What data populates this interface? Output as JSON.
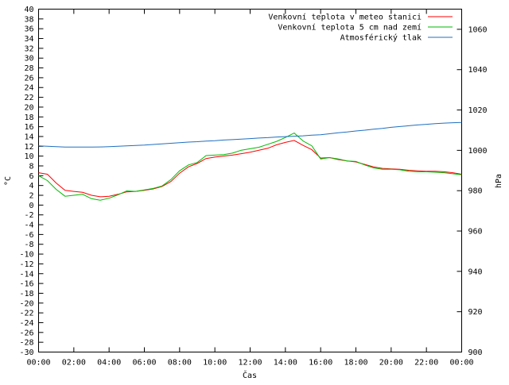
{
  "chart_data": {
    "type": "line",
    "xlabel": "Čas",
    "ylabel": "°C",
    "y2label": "hPa",
    "ylim": [
      -30,
      40
    ],
    "y2lim": [
      900,
      1070
    ],
    "x_ticks": [
      "00:00",
      "02:00",
      "04:00",
      "06:00",
      "08:00",
      "10:00",
      "12:00",
      "14:00",
      "16:00",
      "18:00",
      "20:00",
      "22:00",
      "00:00"
    ],
    "y_ticks": [
      40,
      38,
      36,
      34,
      32,
      30,
      28,
      26,
      24,
      22,
      20,
      18,
      16,
      14,
      12,
      10,
      8,
      6,
      4,
      2,
      0,
      -2,
      -4,
      -6,
      -8,
      -10,
      -12,
      -14,
      -16,
      -18,
      -20,
      -22,
      -24,
      -26,
      -28,
      -30
    ],
    "y2_ticks": [
      1060,
      1040,
      1020,
      1000,
      980,
      960,
      940,
      920,
      900
    ],
    "legend_position": "top-right",
    "x_hours": [
      0,
      0.5,
      1,
      1.5,
      2,
      2.5,
      3,
      3.5,
      4,
      4.5,
      5,
      5.5,
      6,
      6.5,
      7,
      7.5,
      8,
      8.5,
      9,
      9.5,
      10,
      10.5,
      11,
      11.5,
      12,
      12.5,
      13,
      13.5,
      14,
      14.5,
      15,
      15.5,
      16,
      16.5,
      17,
      17.5,
      18,
      18.5,
      19,
      19.5,
      20,
      20.5,
      21,
      21.5,
      22,
      22.5,
      23,
      23.5,
      24
    ],
    "series": [
      {
        "name": "Venkovní teplota v meteo stanici",
        "color": "#ff0000",
        "axis": "left",
        "values": [
          6.6,
          6.3,
          4.5,
          3.0,
          2.8,
          2.6,
          2.0,
          1.7,
          1.8,
          2.2,
          2.7,
          2.8,
          3.0,
          3.3,
          3.8,
          4.8,
          6.5,
          7.8,
          8.5,
          9.5,
          9.8,
          10.0,
          10.2,
          10.5,
          10.8,
          11.2,
          11.6,
          12.3,
          12.8,
          13.2,
          12.2,
          11.3,
          9.6,
          9.7,
          9.3,
          9.0,
          8.8,
          8.3,
          7.8,
          7.5,
          7.4,
          7.3,
          7.1,
          7.0,
          6.9,
          6.9,
          6.8,
          6.6,
          6.3
        ]
      },
      {
        "name": "Venkovní teplota 5 cm nad zemí",
        "color": "#00bb00",
        "axis": "left",
        "values": [
          6.0,
          5.0,
          3.2,
          1.8,
          2.0,
          2.2,
          1.3,
          1.0,
          1.4,
          2.1,
          2.9,
          2.8,
          3.1,
          3.4,
          3.9,
          5.2,
          7.0,
          8.2,
          8.7,
          10.1,
          10.2,
          10.3,
          10.6,
          11.2,
          11.5,
          11.8,
          12.4,
          13.0,
          13.8,
          14.7,
          13.1,
          12.1,
          9.4,
          9.7,
          9.4,
          9.0,
          8.9,
          8.2,
          7.6,
          7.3,
          7.3,
          7.2,
          6.9,
          6.8,
          6.8,
          6.7,
          6.6,
          6.4,
          6.2
        ]
      },
      {
        "name": "Atmosférický tlak",
        "color": "#1f6fc0",
        "axis": "right",
        "values": [
          1002.2,
          1002.0,
          1001.8,
          1001.6,
          1001.6,
          1001.6,
          1001.6,
          1001.7,
          1001.8,
          1002.0,
          1002.2,
          1002.4,
          1002.6,
          1002.9,
          1003.2,
          1003.5,
          1003.8,
          1004.1,
          1004.3,
          1004.6,
          1004.8,
          1005.1,
          1005.3,
          1005.6,
          1005.8,
          1006.1,
          1006.3,
          1006.6,
          1006.8,
          1007.0,
          1007.2,
          1007.5,
          1007.7,
          1008.2,
          1008.7,
          1009.1,
          1009.6,
          1010.0,
          1010.5,
          1010.9,
          1011.4,
          1011.8,
          1012.2,
          1012.6,
          1012.9,
          1013.2,
          1013.5,
          1013.7,
          1013.8
        ]
      }
    ]
  }
}
